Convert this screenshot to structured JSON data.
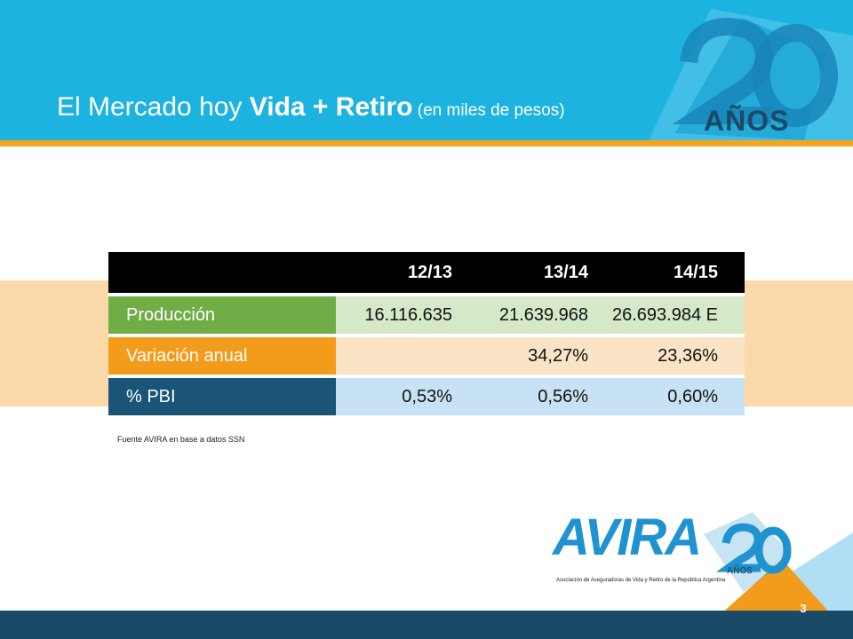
{
  "slide": {
    "title_regular": "El Mercado hoy ",
    "title_bold": "Vida + Retiro",
    "title_small": " (en miles de pesos)",
    "anniversary_badge": "AÑOS",
    "page_number": "3"
  },
  "table": {
    "headers": [
      "",
      "12/13",
      "13/14",
      "14/15"
    ],
    "rows": [
      {
        "label": "Producción",
        "values": [
          "16.116.635",
          "21.639.968",
          "26.693.984 E"
        ]
      },
      {
        "label": "Variación anual",
        "values": [
          "",
          "34,27%",
          "23,36%"
        ]
      },
      {
        "label": "% PBI",
        "values": [
          "0,53%",
          "0,56%",
          "0,60%"
        ]
      }
    ]
  },
  "source_note": "Fuente AVIRA en base a datos SSN",
  "logo": {
    "name": "AVIRA",
    "subtext": "Asociación de Aseguradoras de Vida y Retiro de la República Argentina",
    "anios": "AÑOS"
  },
  "colors": {
    "header_blue": "#1db3e0",
    "accent_orange": "#f2a51f",
    "green": "#70ad47",
    "orange": "#f39c1c",
    "navy": "#1a5477",
    "footer_navy": "#1a4a67"
  }
}
